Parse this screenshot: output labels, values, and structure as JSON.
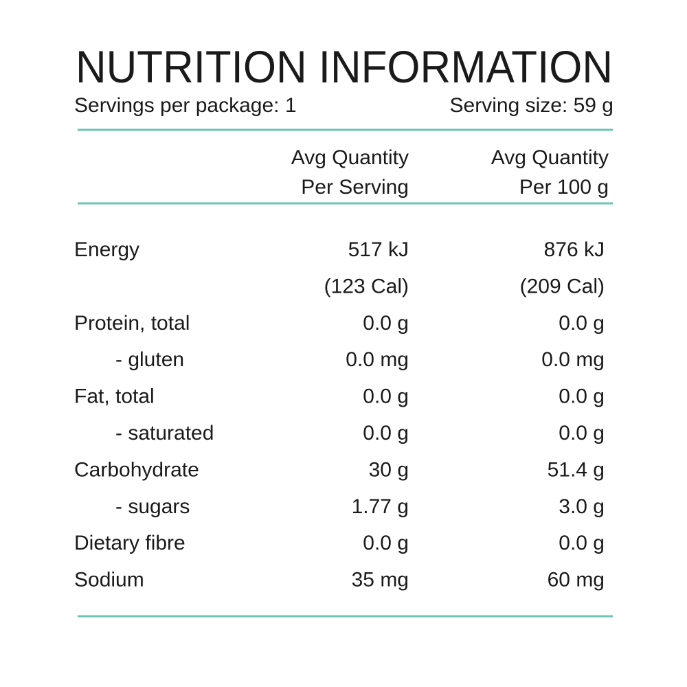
{
  "header": {
    "title": "NUTRITION INFORMATION",
    "servings_per_package": "Servings per package: 1",
    "serving_size": "Serving size: 59 g"
  },
  "table": {
    "columns": [
      "Avg Quantity\nPer Serving",
      "Avg Quantity\nPer 100 g"
    ],
    "rows": [
      {
        "label": "Energy",
        "per_serving": "517 kJ",
        "per_100g": "876 kJ"
      },
      {
        "per_serving": "(123 Cal)",
        "per_100g": "(209 Cal)"
      },
      {
        "label": "Protein, total",
        "per_serving": "0.0 g",
        "per_100g": "0.0 g"
      },
      {
        "label": "- gluten",
        "per_serving": "0.0 mg",
        "per_100g": "0.0 mg",
        "indent": true
      },
      {
        "label": "Fat, total",
        "per_serving": "0.0 g",
        "per_100g": "0.0 g"
      },
      {
        "label": "- saturated",
        "per_serving": "0.0 g",
        "per_100g": "0.0 g",
        "indent": true
      },
      {
        "label": "Carbohydrate",
        "per_serving": "30 g",
        "per_100g": "51.4 g"
      },
      {
        "label": "- sugars",
        "per_serving": "1.77 g",
        "per_100g": "3.0 g",
        "indent": true
      },
      {
        "label": "Dietary fibre",
        "per_serving": "0.0 g",
        "per_100g": "0.0 g"
      },
      {
        "label": "Sodium",
        "per_serving": "35 mg",
        "per_100g": "60 mg"
      }
    ]
  }
}
